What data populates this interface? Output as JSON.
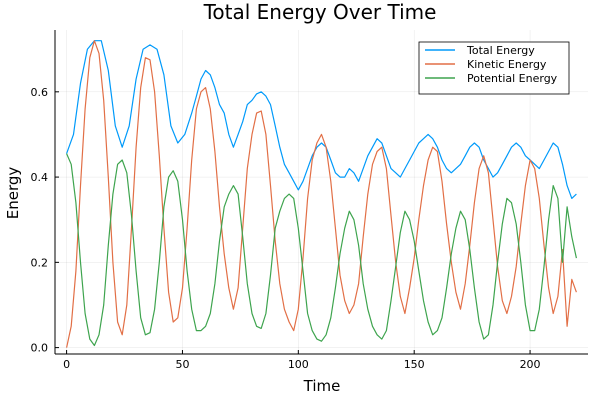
{
  "chart_data": {
    "type": "line",
    "title": "Total Energy Over Time",
    "xlabel": "Time",
    "ylabel": "Energy",
    "xlim": [
      -5,
      225
    ],
    "ylim": [
      -0.015,
      0.745
    ],
    "xticks": [
      0,
      50,
      100,
      150,
      200
    ],
    "yticks": [
      0.0,
      0.2,
      0.4,
      0.6
    ],
    "ytick_labels": [
      "0.0",
      "0.2",
      "0.4",
      "0.6"
    ],
    "grid": true,
    "legend_position": "top-right",
    "series": [
      {
        "name": "Total Energy",
        "color": "#009AFA",
        "points": [
          [
            0,
            0.455
          ],
          [
            3,
            0.5
          ],
          [
            6,
            0.62
          ],
          [
            9,
            0.7
          ],
          [
            12,
            0.72
          ],
          [
            15,
            0.72
          ],
          [
            18,
            0.65
          ],
          [
            21,
            0.52
          ],
          [
            24,
            0.47
          ],
          [
            27,
            0.52
          ],
          [
            30,
            0.63
          ],
          [
            33,
            0.7
          ],
          [
            36,
            0.71
          ],
          [
            39,
            0.7
          ],
          [
            42,
            0.64
          ],
          [
            45,
            0.52
          ],
          [
            48,
            0.48
          ],
          [
            51,
            0.5
          ],
          [
            54,
            0.55
          ],
          [
            56,
            0.59
          ],
          [
            58,
            0.63
          ],
          [
            60,
            0.65
          ],
          [
            62,
            0.64
          ],
          [
            64,
            0.61
          ],
          [
            66,
            0.57
          ],
          [
            68,
            0.55
          ],
          [
            70,
            0.5
          ],
          [
            72,
            0.47
          ],
          [
            74,
            0.5
          ],
          [
            76,
            0.53
          ],
          [
            78,
            0.57
          ],
          [
            80,
            0.58
          ],
          [
            82,
            0.595
          ],
          [
            84,
            0.6
          ],
          [
            86,
            0.59
          ],
          [
            88,
            0.57
          ],
          [
            90,
            0.52
          ],
          [
            92,
            0.47
          ],
          [
            94,
            0.43
          ],
          [
            96,
            0.41
          ],
          [
            98,
            0.39
          ],
          [
            100,
            0.37
          ],
          [
            102,
            0.39
          ],
          [
            104,
            0.42
          ],
          [
            106,
            0.45
          ],
          [
            108,
            0.47
          ],
          [
            110,
            0.48
          ],
          [
            112,
            0.47
          ],
          [
            114,
            0.44
          ],
          [
            116,
            0.41
          ],
          [
            118,
            0.4
          ],
          [
            120,
            0.4
          ],
          [
            122,
            0.42
          ],
          [
            124,
            0.41
          ],
          [
            126,
            0.39
          ],
          [
            128,
            0.42
          ],
          [
            130,
            0.45
          ],
          [
            132,
            0.47
          ],
          [
            134,
            0.49
          ],
          [
            136,
            0.48
          ],
          [
            138,
            0.45
          ],
          [
            140,
            0.42
          ],
          [
            142,
            0.41
          ],
          [
            144,
            0.4
          ],
          [
            146,
            0.42
          ],
          [
            148,
            0.44
          ],
          [
            150,
            0.46
          ],
          [
            152,
            0.48
          ],
          [
            154,
            0.49
          ],
          [
            156,
            0.5
          ],
          [
            158,
            0.49
          ],
          [
            160,
            0.47
          ],
          [
            162,
            0.44
          ],
          [
            164,
            0.42
          ],
          [
            166,
            0.41
          ],
          [
            168,
            0.42
          ],
          [
            170,
            0.43
          ],
          [
            172,
            0.45
          ],
          [
            174,
            0.47
          ],
          [
            176,
            0.48
          ],
          [
            178,
            0.47
          ],
          [
            180,
            0.44
          ],
          [
            182,
            0.42
          ],
          [
            184,
            0.4
          ],
          [
            186,
            0.41
          ],
          [
            188,
            0.43
          ],
          [
            190,
            0.45
          ],
          [
            192,
            0.47
          ],
          [
            194,
            0.48
          ],
          [
            196,
            0.47
          ],
          [
            198,
            0.45
          ],
          [
            200,
            0.44
          ],
          [
            202,
            0.43
          ],
          [
            204,
            0.42
          ],
          [
            206,
            0.44
          ],
          [
            208,
            0.46
          ],
          [
            210,
            0.48
          ],
          [
            212,
            0.47
          ],
          [
            214,
            0.43
          ],
          [
            216,
            0.38
          ],
          [
            218,
            0.35
          ],
          [
            220,
            0.36
          ]
        ]
      },
      {
        "name": "Kinetic Energy",
        "color": "#E26F46",
        "points": [
          [
            0,
            0.0
          ],
          [
            2,
            0.05
          ],
          [
            4,
            0.18
          ],
          [
            6,
            0.38
          ],
          [
            8,
            0.56
          ],
          [
            10,
            0.68
          ],
          [
            12,
            0.72
          ],
          [
            14,
            0.69
          ],
          [
            16,
            0.58
          ],
          [
            18,
            0.4
          ],
          [
            20,
            0.2
          ],
          [
            22,
            0.06
          ],
          [
            24,
            0.03
          ],
          [
            26,
            0.1
          ],
          [
            28,
            0.28
          ],
          [
            30,
            0.47
          ],
          [
            32,
            0.61
          ],
          [
            34,
            0.68
          ],
          [
            36,
            0.675
          ],
          [
            38,
            0.6
          ],
          [
            40,
            0.45
          ],
          [
            42,
            0.28
          ],
          [
            44,
            0.13
          ],
          [
            46,
            0.06
          ],
          [
            48,
            0.07
          ],
          [
            50,
            0.14
          ],
          [
            52,
            0.28
          ],
          [
            54,
            0.44
          ],
          [
            56,
            0.56
          ],
          [
            58,
            0.6
          ],
          [
            60,
            0.61
          ],
          [
            62,
            0.56
          ],
          [
            64,
            0.46
          ],
          [
            66,
            0.33
          ],
          [
            68,
            0.22
          ],
          [
            70,
            0.14
          ],
          [
            72,
            0.09
          ],
          [
            74,
            0.14
          ],
          [
            76,
            0.28
          ],
          [
            78,
            0.42
          ],
          [
            80,
            0.5
          ],
          [
            82,
            0.55
          ],
          [
            84,
            0.555
          ],
          [
            86,
            0.5
          ],
          [
            88,
            0.38
          ],
          [
            90,
            0.25
          ],
          [
            92,
            0.15
          ],
          [
            94,
            0.09
          ],
          [
            96,
            0.06
          ],
          [
            98,
            0.04
          ],
          [
            100,
            0.09
          ],
          [
            102,
            0.21
          ],
          [
            104,
            0.35
          ],
          [
            106,
            0.44
          ],
          [
            108,
            0.48
          ],
          [
            110,
            0.5
          ],
          [
            112,
            0.47
          ],
          [
            114,
            0.39
          ],
          [
            116,
            0.28
          ],
          [
            118,
            0.17
          ],
          [
            120,
            0.11
          ],
          [
            122,
            0.08
          ],
          [
            124,
            0.1
          ],
          [
            126,
            0.15
          ],
          [
            128,
            0.26
          ],
          [
            130,
            0.36
          ],
          [
            132,
            0.43
          ],
          [
            134,
            0.46
          ],
          [
            136,
            0.47
          ],
          [
            138,
            0.42
          ],
          [
            140,
            0.31
          ],
          [
            142,
            0.2
          ],
          [
            144,
            0.12
          ],
          [
            146,
            0.08
          ],
          [
            148,
            0.14
          ],
          [
            150,
            0.21
          ],
          [
            152,
            0.3
          ],
          [
            154,
            0.38
          ],
          [
            156,
            0.44
          ],
          [
            158,
            0.47
          ],
          [
            160,
            0.46
          ],
          [
            162,
            0.39
          ],
          [
            164,
            0.29
          ],
          [
            166,
            0.2
          ],
          [
            168,
            0.13
          ],
          [
            170,
            0.09
          ],
          [
            172,
            0.15
          ],
          [
            174,
            0.24
          ],
          [
            176,
            0.34
          ],
          [
            178,
            0.42
          ],
          [
            180,
            0.45
          ],
          [
            182,
            0.41
          ],
          [
            184,
            0.3
          ],
          [
            186,
            0.19
          ],
          [
            188,
            0.11
          ],
          [
            190,
            0.08
          ],
          [
            192,
            0.12
          ],
          [
            194,
            0.19
          ],
          [
            196,
            0.29
          ],
          [
            198,
            0.38
          ],
          [
            200,
            0.44
          ],
          [
            202,
            0.42
          ],
          [
            204,
            0.35
          ],
          [
            206,
            0.24
          ],
          [
            208,
            0.14
          ],
          [
            210,
            0.08
          ],
          [
            212,
            0.12
          ],
          [
            214,
            0.23
          ],
          [
            216,
            0.05
          ],
          [
            218,
            0.16
          ],
          [
            220,
            0.13
          ]
        ]
      },
      {
        "name": "Potential Energy",
        "color": "#3EA44E",
        "points": [
          [
            0,
            0.455
          ],
          [
            2,
            0.43
          ],
          [
            4,
            0.34
          ],
          [
            6,
            0.2
          ],
          [
            8,
            0.08
          ],
          [
            10,
            0.02
          ],
          [
            12,
            0.005
          ],
          [
            14,
            0.03
          ],
          [
            16,
            0.1
          ],
          [
            18,
            0.24
          ],
          [
            20,
            0.36
          ],
          [
            22,
            0.43
          ],
          [
            24,
            0.44
          ],
          [
            26,
            0.41
          ],
          [
            28,
            0.31
          ],
          [
            30,
            0.18
          ],
          [
            32,
            0.07
          ],
          [
            34,
            0.03
          ],
          [
            36,
            0.035
          ],
          [
            38,
            0.09
          ],
          [
            40,
            0.2
          ],
          [
            42,
            0.33
          ],
          [
            44,
            0.4
          ],
          [
            46,
            0.415
          ],
          [
            48,
            0.39
          ],
          [
            50,
            0.3
          ],
          [
            52,
            0.18
          ],
          [
            54,
            0.09
          ],
          [
            56,
            0.04
          ],
          [
            58,
            0.04
          ],
          [
            60,
            0.05
          ],
          [
            62,
            0.08
          ],
          [
            64,
            0.15
          ],
          [
            66,
            0.25
          ],
          [
            68,
            0.33
          ],
          [
            70,
            0.36
          ],
          [
            72,
            0.38
          ],
          [
            74,
            0.36
          ],
          [
            76,
            0.26
          ],
          [
            78,
            0.15
          ],
          [
            80,
            0.08
          ],
          [
            82,
            0.05
          ],
          [
            84,
            0.045
          ],
          [
            86,
            0.08
          ],
          [
            88,
            0.17
          ],
          [
            90,
            0.28
          ],
          [
            92,
            0.32
          ],
          [
            94,
            0.35
          ],
          [
            96,
            0.36
          ],
          [
            98,
            0.35
          ],
          [
            100,
            0.28
          ],
          [
            102,
            0.18
          ],
          [
            104,
            0.08
          ],
          [
            106,
            0.04
          ],
          [
            108,
            0.02
          ],
          [
            110,
            0.015
          ],
          [
            112,
            0.03
          ],
          [
            114,
            0.07
          ],
          [
            116,
            0.14
          ],
          [
            118,
            0.22
          ],
          [
            120,
            0.28
          ],
          [
            122,
            0.32
          ],
          [
            124,
            0.3
          ],
          [
            126,
            0.24
          ],
          [
            128,
            0.15
          ],
          [
            130,
            0.09
          ],
          [
            132,
            0.05
          ],
          [
            134,
            0.03
          ],
          [
            136,
            0.02
          ],
          [
            138,
            0.04
          ],
          [
            140,
            0.11
          ],
          [
            142,
            0.19
          ],
          [
            144,
            0.27
          ],
          [
            146,
            0.32
          ],
          [
            148,
            0.3
          ],
          [
            150,
            0.25
          ],
          [
            152,
            0.18
          ],
          [
            154,
            0.11
          ],
          [
            156,
            0.06
          ],
          [
            158,
            0.03
          ],
          [
            160,
            0.04
          ],
          [
            162,
            0.07
          ],
          [
            164,
            0.14
          ],
          [
            166,
            0.22
          ],
          [
            168,
            0.28
          ],
          [
            170,
            0.32
          ],
          [
            172,
            0.3
          ],
          [
            174,
            0.23
          ],
          [
            176,
            0.14
          ],
          [
            178,
            0.06
          ],
          [
            180,
            0.02
          ],
          [
            182,
            0.03
          ],
          [
            184,
            0.1
          ],
          [
            186,
            0.2
          ],
          [
            188,
            0.29
          ],
          [
            190,
            0.35
          ],
          [
            192,
            0.34
          ],
          [
            194,
            0.29
          ],
          [
            196,
            0.2
          ],
          [
            198,
            0.1
          ],
          [
            200,
            0.04
          ],
          [
            202,
            0.04
          ],
          [
            204,
            0.09
          ],
          [
            206,
            0.19
          ],
          [
            208,
            0.3
          ],
          [
            210,
            0.38
          ],
          [
            212,
            0.35
          ],
          [
            214,
            0.2
          ],
          [
            216,
            0.33
          ],
          [
            218,
            0.26
          ],
          [
            220,
            0.21
          ]
        ]
      }
    ]
  }
}
